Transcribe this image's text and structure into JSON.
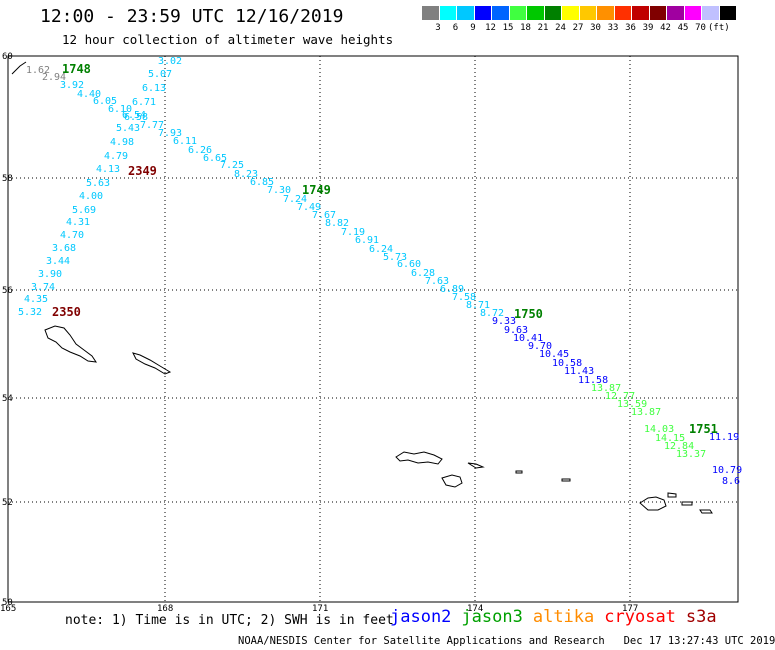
{
  "title": "12:00 - 23:59 UTC 12/16/2019",
  "subtitle": "12 hour collection of altimeter wave heights",
  "legend": {
    "colors": [
      "#808080",
      "#00ffff",
      "#00c8ff",
      "#0000ff",
      "#0064ff",
      "#40ff40",
      "#00c800",
      "#008000",
      "#ffff00",
      "#ffc800",
      "#ff9000",
      "#ff3000",
      "#c00000",
      "#800000",
      "#a000a0",
      "#ff00ff",
      "#c0c0ff",
      "#000000"
    ],
    "labels": [
      "3",
      "6",
      "9",
      "12",
      "15",
      "18",
      "21",
      "24",
      "27",
      "30",
      "33",
      "36",
      "39",
      "42",
      "45",
      "70"
    ],
    "unit": "(ft)"
  },
  "axes": {
    "lat_labels": [
      "60",
      "58",
      "56",
      "54",
      "52",
      "50"
    ],
    "lon_labels": [
      "165",
      "168",
      "171",
      "174",
      "177"
    ]
  },
  "passes": [
    {
      "time_label": "1748",
      "color": "#008000"
    },
    {
      "time_label": "2349",
      "color": "#800000"
    },
    {
      "time_label": "1749",
      "color": "#008000"
    },
    {
      "time_label": "2350",
      "color": "#800000"
    },
    {
      "time_label": "1750",
      "color": "#008000"
    },
    {
      "time_label": "1751",
      "color": "#008000"
    }
  ],
  "observations": [
    {
      "v": "1.62",
      "c": "#808080"
    },
    {
      "v": "2.94",
      "c": "#808080"
    },
    {
      "v": "3.92",
      "c": "#00c8ff"
    },
    {
      "v": "4.40",
      "c": "#00c8ff"
    },
    {
      "v": "6.05",
      "c": "#00c8ff"
    },
    {
      "v": "6.10",
      "c": "#00c8ff"
    },
    {
      "v": "6.58",
      "c": "#00c8ff"
    },
    {
      "v": "7.77",
      "c": "#00c8ff"
    },
    {
      "v": "7.93",
      "c": "#00c8ff"
    },
    {
      "v": "6.11",
      "c": "#00c8ff"
    },
    {
      "v": "6.26",
      "c": "#00c8ff"
    },
    {
      "v": "6.65",
      "c": "#00c8ff"
    },
    {
      "v": "7.25",
      "c": "#00c8ff"
    },
    {
      "v": "8.23",
      "c": "#00c8ff"
    },
    {
      "v": "6.85",
      "c": "#00c8ff"
    },
    {
      "v": "7.30",
      "c": "#00c8ff"
    },
    {
      "v": "7.24",
      "c": "#00c8ff"
    },
    {
      "v": "7.49",
      "c": "#00c8ff"
    },
    {
      "v": "7.67",
      "c": "#00c8ff"
    },
    {
      "v": "8.82",
      "c": "#00c8ff"
    },
    {
      "v": "7.19",
      "c": "#00c8ff"
    },
    {
      "v": "6.91",
      "c": "#00c8ff"
    },
    {
      "v": "6.24",
      "c": "#00c8ff"
    },
    {
      "v": "5.73",
      "c": "#00c8ff"
    },
    {
      "v": "6.60",
      "c": "#00c8ff"
    },
    {
      "v": "6.28",
      "c": "#00c8ff"
    },
    {
      "v": "7.63",
      "c": "#00c8ff"
    },
    {
      "v": "6.89",
      "c": "#00c8ff"
    },
    {
      "v": "7.58",
      "c": "#00c8ff"
    },
    {
      "v": "8.71",
      "c": "#00c8ff"
    },
    {
      "v": "8.72",
      "c": "#00c8ff"
    },
    {
      "v": "9.33",
      "c": "#0000ff"
    },
    {
      "v": "9.63",
      "c": "#0000ff"
    },
    {
      "v": "10.41",
      "c": "#0000ff"
    },
    {
      "v": "9.70",
      "c": "#0000ff"
    },
    {
      "v": "10.45",
      "c": "#0000ff"
    },
    {
      "v": "10.58",
      "c": "#0000ff"
    },
    {
      "v": "11.43",
      "c": "#0000ff"
    },
    {
      "v": "11.58",
      "c": "#0000ff"
    },
    {
      "v": "13.87",
      "c": "#40ff40"
    },
    {
      "v": "12.77",
      "c": "#40ff40"
    },
    {
      "v": "13.59",
      "c": "#40ff40"
    },
    {
      "v": "13.87",
      "c": "#40ff40"
    },
    {
      "v": "14.03",
      "c": "#40ff40"
    },
    {
      "v": "14.15",
      "c": "#40ff40"
    },
    {
      "v": "12.84",
      "c": "#40ff40"
    },
    {
      "v": "13.37",
      "c": "#40ff40"
    },
    {
      "v": "11.19",
      "c": "#0000ff"
    },
    {
      "v": "10.79",
      "c": "#0000ff"
    },
    {
      "v": "8.6",
      "c": "#0000ff"
    },
    {
      "v": "3.02",
      "c": "#00c8ff"
    },
    {
      "v": "5.07",
      "c": "#00c8ff"
    },
    {
      "v": "6.13",
      "c": "#00c8ff"
    },
    {
      "v": "6.71",
      "c": "#00c8ff"
    },
    {
      "v": "6.54",
      "c": "#00c8ff"
    },
    {
      "v": "5.43",
      "c": "#00c8ff"
    },
    {
      "v": "4.98",
      "c": "#00c8ff"
    },
    {
      "v": "4.79",
      "c": "#00c8ff"
    },
    {
      "v": "4.13",
      "c": "#00c8ff"
    },
    {
      "v": "5.63",
      "c": "#00c8ff"
    },
    {
      "v": "4.00",
      "c": "#00c8ff"
    },
    {
      "v": "5.69",
      "c": "#00c8ff"
    },
    {
      "v": "4.31",
      "c": "#00c8ff"
    },
    {
      "v": "4.70",
      "c": "#00c8ff"
    },
    {
      "v": "3.68",
      "c": "#00c8ff"
    },
    {
      "v": "3.44",
      "c": "#00c8ff"
    },
    {
      "v": "3.90",
      "c": "#00c8ff"
    },
    {
      "v": "3.74",
      "c": "#00c8ff"
    },
    {
      "v": "4.35",
      "c": "#00c8ff"
    },
    {
      "v": "5.32",
      "c": "#00c8ff"
    }
  ],
  "note": "note: 1) Time is in UTC; 2) SWH is in feet",
  "satellites": [
    {
      "name": "jason2",
      "color": "#0000ff"
    },
    {
      "name": "jason3",
      "color": "#00a000"
    },
    {
      "name": "altika",
      "color": "#ff8c00"
    },
    {
      "name": "cryosat",
      "color": "#ff0000"
    },
    {
      "name": "s3a",
      "color": "#a00000"
    }
  ],
  "footer": "NOAA/NESDIS Center for Satellite Applications and Research   Dec 17 13:27:43 UTC 2019"
}
